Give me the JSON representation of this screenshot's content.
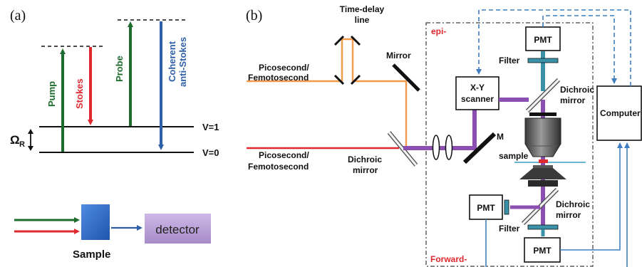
{
  "panel_a": {
    "label": "(a)",
    "transitions": {
      "pump": "Pump",
      "stokes": "Stokes",
      "probe": "Probe",
      "coherent_line1": "Coherent",
      "coherent_line2": "anti-Stokes"
    },
    "levels": {
      "v1": "V=1",
      "v0": "V=0"
    },
    "omega_symbol": "Ω",
    "omega_subscript": "R",
    "sample_label": "Sample",
    "detector_label": "detector"
  },
  "panel_b": {
    "label": "(b)",
    "time_delay_line1": "Time-delay",
    "time_delay_line2": "line",
    "source_top_line1": "Picosecond/",
    "source_top_line2": "Femotosecond",
    "source_bottom_line1": "Picosecond/",
    "source_bottom_line2": "Femotosecond",
    "mirror": "Mirror",
    "dichroic_left_line1": "Dichroic",
    "dichroic_left_line2": "mirror",
    "epi": "epi-",
    "forward": "Forward-",
    "pmt_top": "PMT",
    "pmt_mid": "PMT",
    "pmt_bottom": "PMT",
    "filter_top": "Filter",
    "filter_bottom": "Filter",
    "scanner_line1": "X-Y",
    "scanner_line2": "scanner",
    "dichroic_top_line1": "Dichroic",
    "dichroic_top_line2": "mirror",
    "dichroic_bottom_line1": "Dichroic",
    "dichroic_bottom_line2": "mirror",
    "m_label": "M",
    "sample": "sample",
    "computer": "Computer"
  },
  "colors": {
    "pump": "#1e6b2e",
    "stokes": "#e0282f",
    "coherent": "#2f5fa8",
    "orange_beam": "#f39a4c",
    "red_beam": "#e0282f",
    "combined_beam": "#8a4fb0",
    "signal_teal": "#3a92a8",
    "wire_blue": "#3f7ec0",
    "sample_box": "#2f6cc4",
    "detector_box": "#b9a3d6"
  }
}
